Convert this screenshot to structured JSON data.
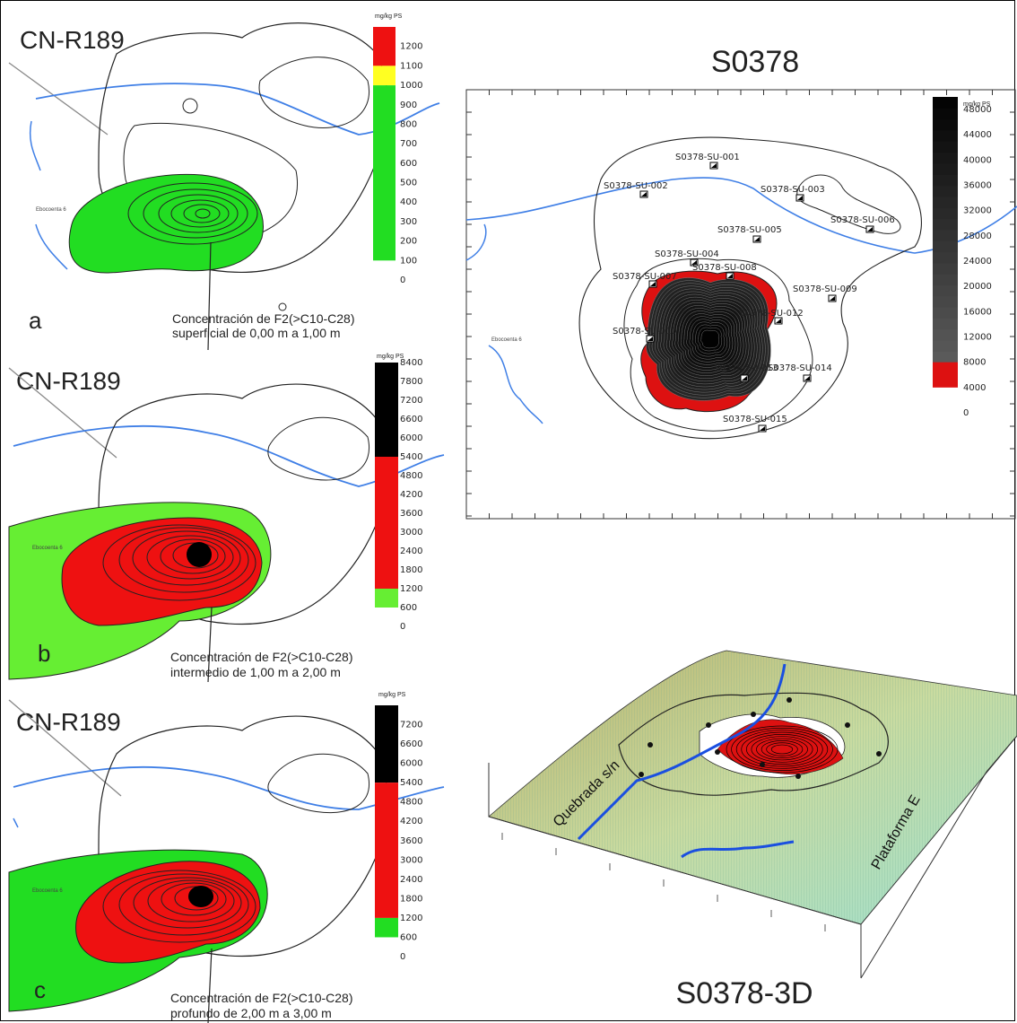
{
  "chart_data": [
    {
      "type": "heatmap",
      "panel": "a",
      "title": "CN-R189",
      "caption_line1": "Concentración de F2(>C10-C28)",
      "caption_line2": "superficial de 0,00 m a 1,00 m",
      "legend_unit": "mg/kg PS",
      "legend_ticks": [
        "1200",
        "1100",
        "1000",
        "900",
        "800",
        "700",
        "600",
        "500",
        "400",
        "300",
        "200",
        "100",
        "0"
      ],
      "legend_colors": [
        {
          "from": 1100,
          "to": 1300,
          "color": "#ee1111"
        },
        {
          "from": 1000,
          "to": 1100,
          "color": "#ffff22"
        },
        {
          "from": 100,
          "to": 1000,
          "color": "#22dd22"
        }
      ],
      "map_label": "Ebocoenta 6"
    },
    {
      "type": "heatmap",
      "panel": "b",
      "title": "CN-R189",
      "caption_line1": "Concentración de F2(>C10-C28)",
      "caption_line2": "intermedio de 1,00 m a 2,00 m",
      "legend_unit": "mg/kg PS",
      "legend_ticks": [
        "8400",
        "7800",
        "7200",
        "6600",
        "6000",
        "5400",
        "4800",
        "4200",
        "3600",
        "3000",
        "2400",
        "1800",
        "1200",
        "600",
        "0"
      ],
      "legend_colors": [
        {
          "from": 5400,
          "to": 9000,
          "color": "#000000"
        },
        {
          "from": 1200,
          "to": 5400,
          "color": "#ee1111"
        },
        {
          "from": 600,
          "to": 1200,
          "color": "#66ee33"
        }
      ],
      "map_label": "Ebocoenta 6"
    },
    {
      "type": "heatmap",
      "panel": "c",
      "title": "CN-R189",
      "caption_line1": "Concentración de F2(>C10-C28)",
      "caption_line2": "profundo de 2,00 m a 3,00 m",
      "legend_unit": "mg/kg PS",
      "legend_ticks": [
        "7200",
        "6600",
        "6000",
        "5400",
        "4800",
        "4200",
        "3600",
        "3000",
        "2400",
        "1800",
        "1200",
        "600",
        "0"
      ],
      "legend_colors": [
        {
          "from": 5400,
          "to": 7800,
          "color": "#000000"
        },
        {
          "from": 1200,
          "to": 5400,
          "color": "#ee1111"
        },
        {
          "from": 600,
          "to": 1200,
          "color": "#22dd22"
        }
      ],
      "map_label": "Ebocoenta 6"
    },
    {
      "type": "heatmap",
      "panel": "S0378",
      "title": "S0378",
      "legend_unit": "mg/kg PS",
      "legend_ticks": [
        "48000",
        "44000",
        "40000",
        "36000",
        "32000",
        "28000",
        "24000",
        "20000",
        "16000",
        "12000",
        "8000",
        "4000",
        "0"
      ],
      "legend_colors": [
        {
          "from": 8000,
          "to": 50000,
          "color": "gradient-black"
        },
        {
          "from": 4000,
          "to": 8000,
          "color": "#dd1111"
        }
      ],
      "map_label": "Ebocoenta 6",
      "sample_points": [
        "S0378-SU-001",
        "S0378-SU-002",
        "S0378-SU-003",
        "S0378-SU-006",
        "S0378-SU-005",
        "S0378-SU-004",
        "S0378-SU-008",
        "S0378-SU-007",
        "S0378-SU-009",
        "S0378-SU-012",
        "S0378-SU-010",
        "S0378-SU-013",
        "S0378-SU-014",
        "S0378-SU-015"
      ]
    },
    {
      "type": "heatmap",
      "panel": "S0378-3D",
      "title": "S0378-3D",
      "labels": [
        "Quebrada s/n",
        "Plataforma E"
      ]
    }
  ],
  "colors": {
    "river": "#3f7fe6",
    "green": "#22dd22",
    "red": "#ee1111",
    "yellow": "#ffff22",
    "black": "#000000"
  }
}
